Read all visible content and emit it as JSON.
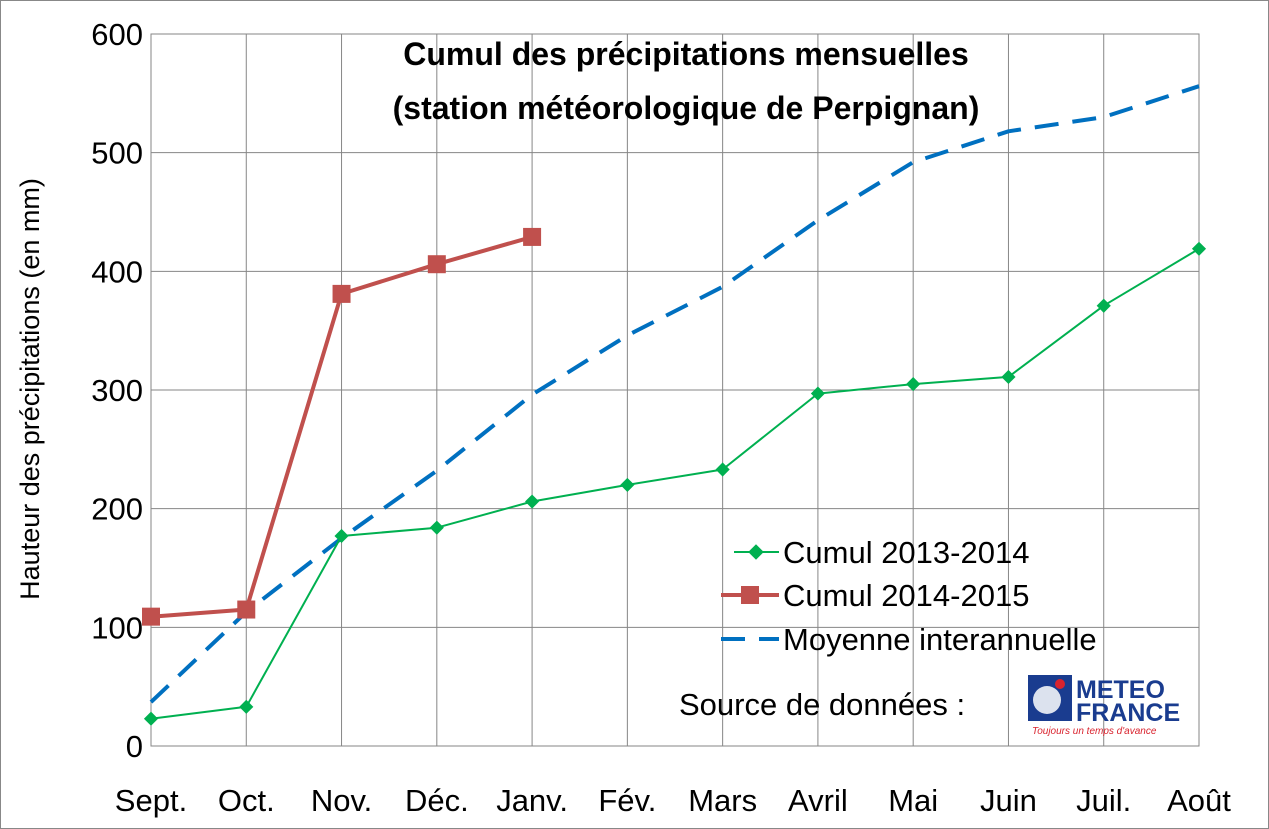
{
  "chart_data": {
    "type": "line",
    "title": "Cumul des précipitations mensuelles",
    "subtitle": "(station météorologique de Perpignan)",
    "xlabel": "",
    "ylabel": "Hauteur des précipitations (en mm)",
    "ylim": [
      0,
      600
    ],
    "yticks": [
      0,
      100,
      200,
      300,
      400,
      500,
      600
    ],
    "grid": true,
    "legend_position": "bottom-right",
    "categories": [
      "Sept.",
      "Oct.",
      "Nov.",
      "Déc.",
      "Janv.",
      "Fév.",
      "Mars",
      "Avril",
      "Mai",
      "Juin",
      "Juil.",
      "Août"
    ],
    "series": [
      {
        "name": "Cumul 2013-2014",
        "color": "#00b050",
        "marker": "diamond",
        "dash": "solid",
        "values": [
          23,
          33,
          177,
          184,
          206,
          220,
          233,
          297,
          305,
          311,
          371,
          419
        ]
      },
      {
        "name": "Cumul 2014-2015",
        "color": "#c0504d",
        "marker": "square",
        "dash": "solid",
        "values": [
          109,
          115,
          381,
          406,
          429,
          null,
          null,
          null,
          null,
          null,
          null,
          null
        ]
      },
      {
        "name": "Moyenne interannuelle",
        "color": "#0070c0",
        "marker": "none",
        "dash": "dashed",
        "values": [
          37,
          113,
          175,
          232,
          296,
          346,
          387,
          443,
          492,
          518,
          530,
          556
        ]
      }
    ],
    "source_label": "Source de données :",
    "logo": {
      "line1": "METEO",
      "line2": "FRANCE",
      "tagline": "Toujours un temps d'avance",
      "icon": "meteo-france-globe-icon",
      "color": "#1a3c8f",
      "accent": "#d9232e"
    }
  }
}
